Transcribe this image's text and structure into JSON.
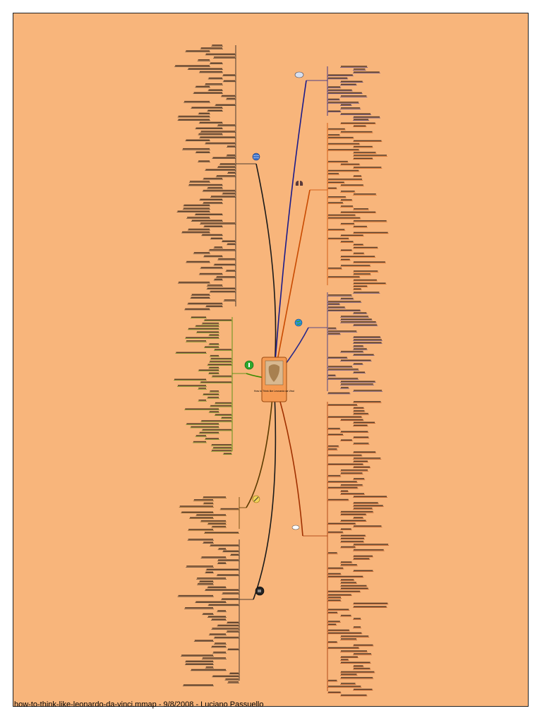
{
  "footer": {
    "filename": "how-to-think-like-leonardo-da-vinci.mmap",
    "sep1": "-",
    "date": "9/8/2008",
    "sep2": "-",
    "author": "Luciano  Passuello"
  },
  "central_topic": {
    "title": "How to Think like Leonardo da Vinci"
  },
  "branches": [
    {
      "id": "curiosita",
      "side": "left",
      "color": "#1a1a1a",
      "icon": "globe-icon"
    },
    {
      "id": "corporalita",
      "side": "left",
      "color": "#3a8a00",
      "icon": "green-circle-icon"
    },
    {
      "id": "connessione",
      "side": "left",
      "color": "#5a3a00",
      "icon": "pencil-icon"
    },
    {
      "id": "sfumato",
      "side": "left",
      "color": "#1a1a1a",
      "icon": "coffee-cup-icon"
    },
    {
      "id": "dimostrazione",
      "side": "right",
      "color": "#1a1a8a",
      "icon": "brain-icon"
    },
    {
      "id": "sensazione",
      "side": "right",
      "color": "#c84a00",
      "icon": "lungs-icon"
    },
    {
      "id": "arte-scienza",
      "side": "right",
      "color": "#2a2a8a",
      "icon": "earth-icon"
    },
    {
      "id": "conclusion",
      "side": "right",
      "color": "#a03000",
      "icon": "cup-icon"
    }
  ],
  "colors": {
    "background": "#f8b57b",
    "border": "#222222",
    "central_fill": "#f59a52",
    "text": "#000000"
  }
}
